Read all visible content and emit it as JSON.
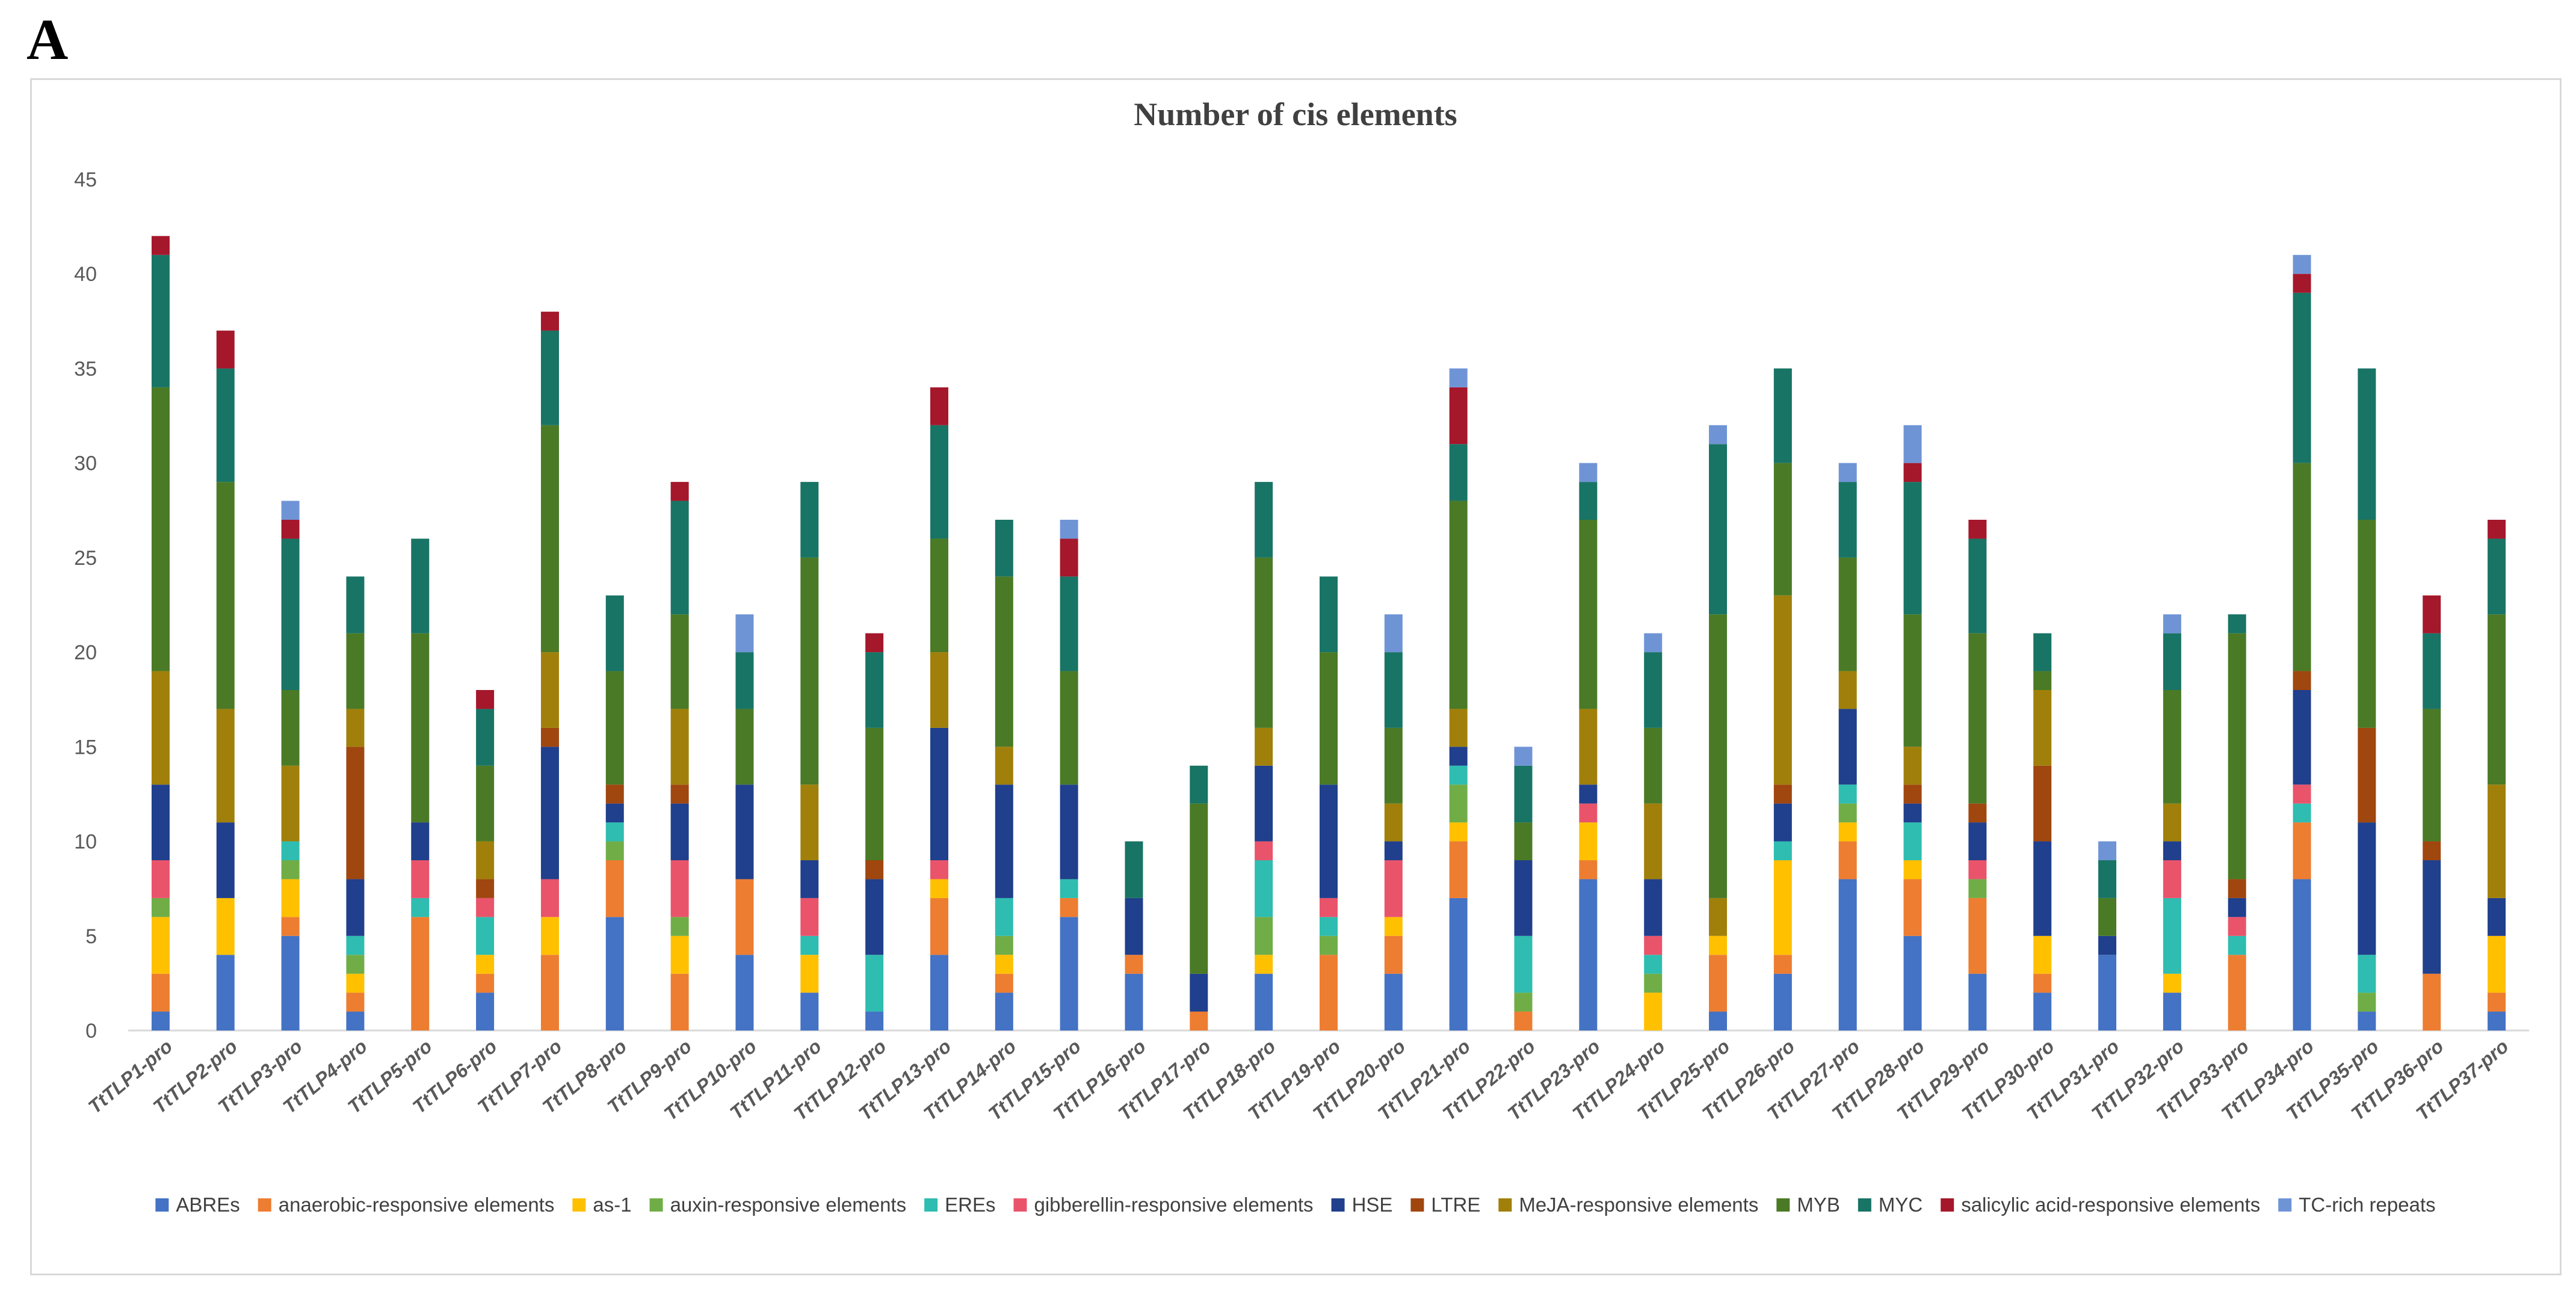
{
  "panel_label": "A",
  "chart_data": {
    "type": "bar",
    "stacked": true,
    "title": "Number of cis elements",
    "xlabel": "",
    "ylabel": "",
    "ylim": [
      0,
      45
    ],
    "yticks": [
      0,
      5,
      10,
      15,
      20,
      25,
      30,
      35,
      40,
      45
    ],
    "grid": false,
    "legend_position": "bottom",
    "categories": [
      "TtTLP1-pro",
      "TtTLP2-pro",
      "TtTLP3-pro",
      "TtTLP4-pro",
      "TtTLP5-pro",
      "TtTLP6-pro",
      "TtTLP7-pro",
      "TtTLP8-pro",
      "TtTLP9-pro",
      "TtTLP10-pro",
      "TtTLP11-pro",
      "TtTLP12-pro",
      "TtTLP13-pro",
      "TtTLP14-pro",
      "TtTLP15-pro",
      "TtTLP16-pro",
      "TtTLP17-pro",
      "TtTLP18-pro",
      "TtTLP19-pro",
      "TtTLP20-pro",
      "TtTLP21-pro",
      "TtTLP22-pro",
      "TtTLP23-pro",
      "TtTLP24-pro",
      "TtTLP25-pro",
      "TtTLP26-pro",
      "TtTLP27-pro",
      "TtTLP28-pro",
      "TtTLP29-pro",
      "TtTLP30-pro",
      "TtTLP31-pro",
      "TtTLP32-pro",
      "TtTLP33-pro",
      "TtTLP34-pro",
      "TtTLP35-pro",
      "TtTLP36-pro",
      "TtTLP37-pro"
    ],
    "series": [
      {
        "name": "ABREs",
        "color": "#4472c4",
        "values": [
          1,
          4,
          5,
          1,
          0,
          2,
          0,
          6,
          0,
          4,
          2,
          1,
          4,
          2,
          6,
          3,
          0,
          3,
          0,
          3,
          7,
          0,
          8,
          0,
          1,
          3,
          8,
          5,
          3,
          2,
          4,
          2,
          0,
          8,
          1,
          0,
          1
        ]
      },
      {
        "name": "anaerobic-responsive elements",
        "color": "#ed7d31",
        "values": [
          2,
          0,
          1,
          1,
          6,
          1,
          4,
          3,
          3,
          4,
          0,
          0,
          3,
          1,
          1,
          1,
          1,
          0,
          4,
          2,
          3,
          1,
          1,
          0,
          3,
          1,
          2,
          3,
          4,
          1,
          0,
          0,
          4,
          3,
          0,
          3,
          1
        ]
      },
      {
        "name": "as-1",
        "color": "#ffc000",
        "values": [
          3,
          3,
          2,
          1,
          0,
          1,
          2,
          0,
          2,
          0,
          2,
          0,
          1,
          1,
          0,
          0,
          0,
          1,
          0,
          1,
          1,
          0,
          2,
          2,
          1,
          5,
          1,
          1,
          0,
          2,
          0,
          1,
          0,
          0,
          0,
          0,
          3
        ]
      },
      {
        "name": "auxin-responsive elements",
        "color": "#70ad47",
        "values": [
          1,
          0,
          1,
          1,
          0,
          0,
          0,
          1,
          1,
          0,
          0,
          0,
          0,
          1,
          0,
          0,
          0,
          2,
          1,
          0,
          2,
          1,
          0,
          1,
          0,
          0,
          1,
          0,
          1,
          0,
          0,
          0,
          0,
          0,
          1,
          0,
          0
        ]
      },
      {
        "name": "EREs",
        "color": "#2ebdb0",
        "values": [
          0,
          0,
          1,
          1,
          1,
          2,
          0,
          1,
          0,
          0,
          1,
          3,
          0,
          2,
          1,
          0,
          0,
          3,
          1,
          0,
          1,
          3,
          0,
          1,
          0,
          1,
          1,
          2,
          0,
          0,
          0,
          4,
          1,
          1,
          2,
          0,
          0
        ]
      },
      {
        "name": "gibberellin-responsive elements",
        "color": "#e9546b",
        "values": [
          2,
          0,
          0,
          0,
          2,
          1,
          2,
          0,
          3,
          0,
          2,
          0,
          1,
          0,
          0,
          0,
          0,
          1,
          1,
          3,
          0,
          0,
          1,
          1,
          0,
          0,
          0,
          0,
          1,
          0,
          0,
          2,
          1,
          1,
          0,
          0,
          0
        ]
      },
      {
        "name": "HSE",
        "color": "#203f8c",
        "values": [
          4,
          4,
          0,
          3,
          2,
          0,
          7,
          1,
          3,
          5,
          2,
          4,
          7,
          6,
          5,
          3,
          2,
          4,
          6,
          1,
          1,
          4,
          1,
          3,
          0,
          2,
          4,
          1,
          2,
          5,
          1,
          1,
          1,
          5,
          7,
          6,
          2
        ]
      },
      {
        "name": "LTRE",
        "color": "#a0460f",
        "values": [
          0,
          0,
          0,
          7,
          0,
          1,
          1,
          1,
          1,
          0,
          0,
          1,
          0,
          0,
          0,
          0,
          0,
          0,
          0,
          0,
          0,
          0,
          0,
          0,
          0,
          1,
          0,
          1,
          1,
          4,
          0,
          0,
          1,
          1,
          5,
          1,
          0
        ]
      },
      {
        "name": "MeJA-responsive elements",
        "color": "#a0800a",
        "values": [
          6,
          6,
          4,
          2,
          0,
          2,
          4,
          0,
          4,
          0,
          4,
          0,
          4,
          2,
          0,
          0,
          0,
          2,
          0,
          2,
          2,
          0,
          4,
          4,
          2,
          10,
          2,
          2,
          0,
          4,
          0,
          2,
          0,
          0,
          0,
          0,
          6
        ]
      },
      {
        "name": "MYB",
        "color": "#4a7a26",
        "values": [
          15,
          12,
          4,
          4,
          10,
          4,
          12,
          6,
          5,
          4,
          12,
          7,
          6,
          9,
          6,
          0,
          9,
          9,
          7,
          4,
          11,
          2,
          10,
          4,
          15,
          7,
          6,
          7,
          9,
          1,
          2,
          6,
          13,
          11,
          11,
          7,
          9
        ]
      },
      {
        "name": "MYC",
        "color": "#187465",
        "values": [
          7,
          6,
          8,
          3,
          5,
          3,
          5,
          4,
          6,
          3,
          4,
          4,
          6,
          3,
          5,
          3,
          2,
          4,
          4,
          4,
          3,
          3,
          2,
          4,
          9,
          5,
          4,
          7,
          5,
          2,
          2,
          3,
          1,
          9,
          8,
          4,
          4
        ]
      },
      {
        "name": "salicylic acid-responsive elements",
        "color": "#a5172b",
        "values": [
          1,
          2,
          1,
          0,
          0,
          1,
          1,
          0,
          1,
          0,
          0,
          1,
          2,
          0,
          2,
          0,
          0,
          0,
          0,
          0,
          3,
          0,
          0,
          0,
          0,
          0,
          0,
          1,
          1,
          0,
          0,
          0,
          0,
          1,
          0,
          2,
          1
        ]
      },
      {
        "name": "TC-rich repeats",
        "color": "#6f94d6",
        "values": [
          0,
          0,
          1,
          0,
          0,
          0,
          0,
          0,
          0,
          2,
          0,
          0,
          0,
          0,
          1,
          0,
          0,
          0,
          0,
          2,
          1,
          1,
          1,
          1,
          1,
          0,
          1,
          2,
          0,
          0,
          1,
          1,
          0,
          1,
          0,
          0,
          0
        ]
      }
    ]
  }
}
